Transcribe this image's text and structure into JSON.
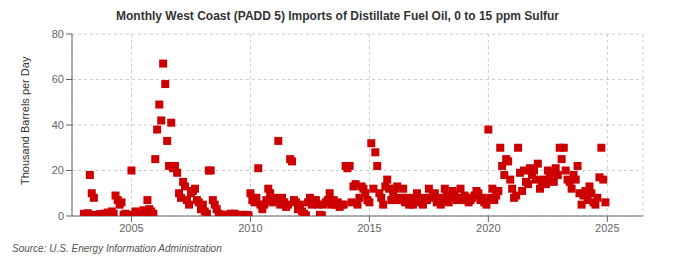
{
  "chart_data": {
    "type": "scatter",
    "title": "Monthly West Coast (PADD 5) Imports of Distillate Fuel Oil, 0 to 15 ppm Sulfur",
    "ylabel": "Thousand Barrels per Day",
    "source": "Source: U.S. Energy Information Administration",
    "color": "#cc0000",
    "marker": "square",
    "grid": true,
    "xlim": [
      2002.5,
      2026.5
    ],
    "xticks": [
      2005,
      2010,
      2015,
      2020,
      2025
    ],
    "ylim": [
      0,
      80
    ],
    "yticks": [
      0,
      20,
      40,
      60,
      80
    ],
    "x": [
      2003,
      2003.08,
      2003.17,
      2003.25,
      2003.33,
      2003.42,
      2003.5,
      2003.58,
      2003.67,
      2003.75,
      2003.83,
      2003.92,
      2004,
      2004.08,
      2004.17,
      2004.25,
      2004.33,
      2004.42,
      2004.5,
      2004.58,
      2004.67,
      2004.75,
      2004.83,
      2004.92,
      2005,
      2005.08,
      2005.17,
      2005.25,
      2005.33,
      2005.42,
      2005.5,
      2005.58,
      2005.67,
      2005.75,
      2005.83,
      2005.92,
      2006,
      2006.08,
      2006.17,
      2006.25,
      2006.33,
      2006.42,
      2006.5,
      2006.58,
      2006.67,
      2006.75,
      2006.83,
      2006.92,
      2007,
      2007.08,
      2007.17,
      2007.25,
      2007.33,
      2007.42,
      2007.5,
      2007.58,
      2007.67,
      2007.75,
      2007.83,
      2007.92,
      2008,
      2008.08,
      2008.17,
      2008.25,
      2008.33,
      2008.42,
      2008.5,
      2008.58,
      2008.67,
      2008.75,
      2008.83,
      2008.92,
      2009,
      2009.08,
      2009.17,
      2009.25,
      2009.33,
      2009.42,
      2009.5,
      2009.58,
      2009.67,
      2009.75,
      2009.83,
      2009.92,
      2010,
      2010.08,
      2010.17,
      2010.25,
      2010.33,
      2010.42,
      2010.5,
      2010.58,
      2010.67,
      2010.75,
      2010.83,
      2010.92,
      2011,
      2011.08,
      2011.17,
      2011.25,
      2011.33,
      2011.42,
      2011.5,
      2011.58,
      2011.67,
      2011.75,
      2011.83,
      2011.92,
      2012,
      2012.08,
      2012.17,
      2012.25,
      2012.33,
      2012.42,
      2012.5,
      2012.58,
      2012.67,
      2012.75,
      2012.83,
      2012.92,
      2013,
      2013.08,
      2013.17,
      2013.25,
      2013.33,
      2013.42,
      2013.5,
      2013.58,
      2013.67,
      2013.75,
      2013.83,
      2013.92,
      2014,
      2014.08,
      2014.17,
      2014.25,
      2014.33,
      2014.42,
      2014.5,
      2014.58,
      2014.67,
      2014.75,
      2014.83,
      2014.92,
      2015,
      2015.08,
      2015.17,
      2015.25,
      2015.33,
      2015.42,
      2015.5,
      2015.58,
      2015.67,
      2015.75,
      2015.83,
      2015.92,
      2016,
      2016.08,
      2016.17,
      2016.25,
      2016.33,
      2016.42,
      2016.5,
      2016.58,
      2016.67,
      2016.75,
      2016.83,
      2016.92,
      2017,
      2017.08,
      2017.17,
      2017.25,
      2017.33,
      2017.42,
      2017.5,
      2017.58,
      2017.67,
      2017.75,
      2017.83,
      2017.92,
      2018,
      2018.08,
      2018.17,
      2018.25,
      2018.33,
      2018.42,
      2018.5,
      2018.58,
      2018.67,
      2018.75,
      2018.83,
      2018.92,
      2019,
      2019.08,
      2019.17,
      2019.25,
      2019.33,
      2019.42,
      2019.5,
      2019.58,
      2019.67,
      2019.75,
      2019.83,
      2019.92,
      2020,
      2020.08,
      2020.17,
      2020.25,
      2020.33,
      2020.42,
      2020.5,
      2020.58,
      2020.67,
      2020.75,
      2020.83,
      2020.92,
      2021,
      2021.08,
      2021.17,
      2021.25,
      2021.33,
      2021.42,
      2021.5,
      2021.58,
      2021.67,
      2021.75,
      2021.83,
      2021.92,
      2022,
      2022.08,
      2022.17,
      2022.25,
      2022.33,
      2022.42,
      2022.5,
      2022.58,
      2022.67,
      2022.75,
      2022.83,
      2022.92,
      2023,
      2023.08,
      2023.17,
      2023.25,
      2023.33,
      2023.42,
      2023.5,
      2023.58,
      2023.67,
      2023.75,
      2023.83,
      2023.92,
      2024,
      2024.08,
      2024.17,
      2024.25,
      2024.33,
      2024.42,
      2024.5,
      2024.58,
      2024.67,
      2024.75,
      2024.83,
      2024.92
    ],
    "values": [
      1.0,
      0.5,
      1.2,
      18.0,
      10.0,
      8.0,
      0.5,
      0.3,
      0.8,
      0.5,
      1.0,
      0.5,
      1.5,
      0.8,
      2.0,
      1.0,
      9.0,
      7.0,
      5.0,
      6.0,
      0.5,
      1.0,
      0.3,
      0.5,
      20.0,
      0.5,
      2.0,
      1.0,
      0.8,
      0.5,
      2.5,
      1.5,
      7.0,
      3.0,
      2.0,
      1.0,
      25.0,
      38.0,
      49.0,
      42.0,
      67.0,
      58.0,
      33.0,
      22.0,
      41.0,
      21.0,
      22.0,
      19.0,
      10.0,
      8.0,
      15.0,
      13.0,
      7.0,
      5.0,
      10.0,
      11.0,
      12.0,
      7.0,
      6.0,
      3.0,
      5.0,
      2.0,
      1.0,
      20.0,
      20.0,
      7.0,
      5.0,
      3.0,
      1.0,
      0.5,
      0.5,
      0.3,
      0.5,
      0.3,
      1.0,
      0.3,
      1.0,
      0.5,
      0.3,
      0.2,
      0.5,
      0.3,
      0.5,
      0.3,
      10.0,
      7.0,
      6.0,
      8.0,
      21.0,
      5.0,
      3.0,
      5.0,
      7.0,
      12.0,
      10.0,
      6.0,
      8.0,
      7.0,
      33.0,
      5.0,
      8.0,
      6.0,
      4.0,
      5.0,
      25.0,
      24.0,
      7.0,
      6.0,
      3.0,
      5.0,
      2.0,
      1.0,
      0.3,
      6.0,
      8.0,
      5.0,
      7.0,
      7.0,
      5.0,
      0.5,
      0.3,
      5.0,
      6.0,
      7.0,
      10.0,
      5.0,
      7.0,
      5.0,
      6.0,
      4.0,
      5.0,
      5.0,
      22.0,
      21.0,
      22.0,
      6.0,
      13.0,
      14.0,
      5.0,
      8.0,
      13.0,
      12.0,
      10.0,
      7.0,
      6.0,
      32.0,
      12.0,
      28.0,
      22.0,
      10.0,
      8.0,
      5.0,
      13.0,
      16.0,
      12.0,
      7.0,
      9.0,
      12.0,
      13.0,
      7.0,
      8.0,
      12.0,
      6.0,
      8.0,
      5.0,
      7.0,
      5.0,
      8.0,
      10.0,
      7.0,
      6.0,
      5.0,
      8.0,
      7.0,
      12.0,
      8.0,
      9.0,
      10.0,
      6.0,
      8.0,
      5.0,
      7.0,
      12.0,
      9.0,
      6.0,
      8.0,
      11.0,
      9.0,
      7.0,
      8.0,
      12.0,
      7.0,
      9.0,
      8.0,
      6.0,
      7.0,
      8.0,
      9.0,
      11.0,
      10.0,
      7.0,
      8.0,
      6.0,
      5.0,
      38.0,
      8.0,
      12.0,
      7.0,
      9.0,
      11.0,
      30.0,
      22.0,
      18.0,
      25.0,
      24.0,
      16.0,
      12.0,
      8.0,
      9.0,
      30.0,
      19.0,
      11.0,
      20.0,
      15.0,
      14.0,
      21.0,
      18.0,
      20.0,
      16.0,
      23.0,
      12.0,
      15.0,
      16.0,
      14.0,
      20.0,
      17.0,
      19.0,
      15.0,
      21.0,
      18.0,
      30.0,
      25.0,
      30.0,
      20.0,
      16.0,
      15.0,
      12.0,
      18.0,
      16.0,
      22.0,
      10.0,
      5.0,
      9.0,
      11.0,
      7.0,
      13.0,
      10.0,
      6.0,
      5.0,
      8.0,
      17.0,
      30.0,
      16.0,
      6.0
    ]
  }
}
